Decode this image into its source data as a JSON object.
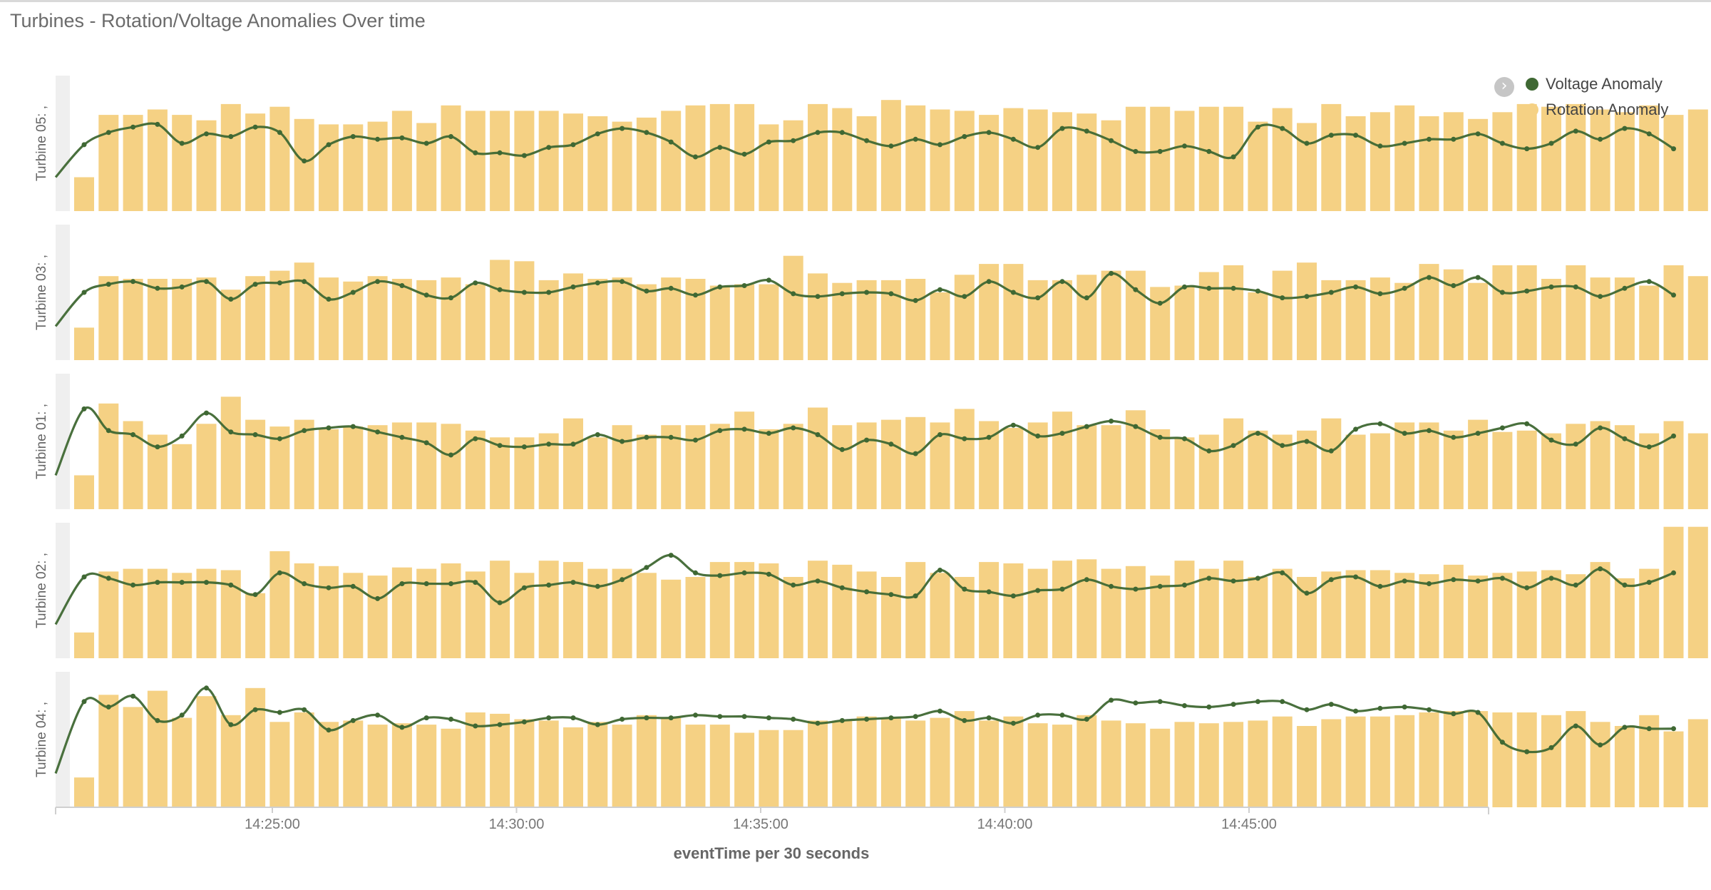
{
  "panel": {
    "title": "Turbines - Rotation/Voltage Anomalies Over time"
  },
  "legend": {
    "toggle_icon": "chevron-right-icon",
    "items": [
      {
        "label": "Voltage Anomaly",
        "color": "#3f6833"
      },
      {
        "label": "Rotation Anomaly",
        "color": "#f5d184"
      }
    ]
  },
  "chart_data": {
    "type": "bar",
    "xlabel": "eventTime per 30 seconds",
    "x_ticks": [
      "14:25:00",
      "14:30:00",
      "14:35:00",
      "14:40:00",
      "14:45:00"
    ],
    "grid": false,
    "legend_position": "top-right",
    "panels": [
      {
        "label": "Turbine 05: ,",
        "rotation": [
          25,
          71,
          71,
          75,
          71,
          67,
          79,
          72,
          77,
          68,
          64,
          64,
          66,
          74,
          65,
          78,
          74,
          74,
          74,
          74,
          72,
          70,
          66,
          69,
          74,
          78,
          79,
          79,
          64,
          67,
          79,
          76,
          70,
          82,
          78,
          75,
          74,
          71,
          76,
          75,
          73,
          72,
          67,
          77,
          77,
          74,
          77,
          77,
          66,
          76,
          65,
          79,
          70,
          73,
          78,
          70,
          73,
          68,
          73,
          79,
          77,
          79,
          75,
          73,
          78,
          71,
          75
        ],
        "voltage": [
          25,
          49,
          58,
          62,
          64,
          50,
          57,
          55,
          62,
          58,
          37,
          49,
          55,
          53,
          54,
          50,
          55,
          43,
          43,
          41,
          47,
          49,
          57,
          61,
          58,
          51,
          40,
          47,
          42,
          51,
          52,
          58,
          58,
          52,
          48,
          53,
          49,
          55,
          58,
          53,
          47,
          61,
          59,
          52,
          44,
          44,
          48,
          44,
          40,
          62,
          61,
          50,
          56,
          56,
          48,
          50,
          53,
          53,
          57,
          50,
          46,
          50,
          59,
          53,
          61,
          57,
          46
        ]
      },
      {
        "label": "Turbine 03: ,",
        "rotation": [
          24,
          62,
          60,
          60,
          60,
          61,
          52,
          62,
          66,
          72,
          61,
          58,
          62,
          60,
          59,
          61,
          56,
          74,
          73,
          59,
          64,
          60,
          61,
          56,
          61,
          60,
          55,
          56,
          56,
          77,
          64,
          57,
          59,
          59,
          60,
          50,
          63,
          71,
          71,
          59,
          59,
          63,
          66,
          66,
          54,
          55,
          65,
          70,
          50,
          66,
          72,
          59,
          59,
          61,
          57,
          71,
          67,
          57,
          70,
          70,
          60,
          70,
          61,
          61,
          55,
          70,
          62
        ],
        "voltage": [
          25,
          50,
          56,
          58,
          53,
          54,
          58,
          45,
          56,
          57,
          58,
          45,
          50,
          58,
          55,
          48,
          46,
          57,
          52,
          50,
          50,
          54,
          57,
          58,
          51,
          53,
          48,
          54,
          55,
          59,
          49,
          47,
          49,
          50,
          49,
          44,
          52,
          47,
          58,
          50,
          46,
          58,
          46,
          64,
          52,
          42,
          54,
          53,
          53,
          51,
          46,
          47,
          50,
          54,
          49,
          53,
          61,
          55,
          61,
          50,
          51,
          54,
          54,
          47,
          53,
          58,
          48
        ]
      },
      {
        "label": "Turbine 01: ,",
        "rotation": [
          25,
          78,
          65,
          55,
          48,
          63,
          83,
          66,
          61,
          66,
          59,
          61,
          62,
          64,
          64,
          63,
          58,
          53,
          53,
          56,
          67,
          53,
          62,
          55,
          62,
          62,
          63,
          72,
          59,
          63,
          75,
          62,
          64,
          66,
          68,
          64,
          74,
          65,
          60,
          64,
          72,
          62,
          62,
          73,
          59,
          53,
          55,
          67,
          58,
          55,
          58,
          67,
          55,
          56,
          64,
          64,
          58,
          66,
          57,
          58,
          56,
          63,
          65,
          62,
          56,
          65,
          56
        ],
        "voltage": [
          25,
          74,
          58,
          55,
          46,
          54,
          71,
          57,
          55,
          52,
          58,
          60,
          61,
          57,
          53,
          49,
          40,
          52,
          47,
          46,
          48,
          48,
          55,
          50,
          53,
          53,
          51,
          58,
          59,
          56,
          60,
          55,
          44,
          51,
          48,
          41,
          55,
          52,
          53,
          62,
          54,
          56,
          61,
          65,
          61,
          53,
          52,
          43,
          47,
          56,
          47,
          50,
          43,
          59,
          63,
          56,
          58,
          53,
          56,
          60,
          63,
          51,
          48,
          60,
          52,
          46,
          54
        ]
      },
      {
        "label": "Turbine 02: ,",
        "rotation": [
          19,
          64,
          66,
          66,
          63,
          66,
          65,
          48,
          79,
          70,
          68,
          63,
          61,
          67,
          66,
          70,
          64,
          72,
          63,
          72,
          71,
          66,
          66,
          63,
          58,
          60,
          71,
          71,
          70,
          60,
          72,
          69,
          64,
          60,
          71,
          63,
          60,
          71,
          70,
          66,
          72,
          73,
          66,
          68,
          61,
          72,
          66,
          72,
          60,
          66,
          60,
          64,
          65,
          65,
          63,
          62,
          69,
          61,
          63,
          64,
          65,
          62,
          71,
          59,
          66,
          97,
          97
        ],
        "voltage": [
          25,
          60,
          59,
          54,
          56,
          56,
          56,
          54,
          47,
          63,
          55,
          52,
          53,
          44,
          55,
          55,
          55,
          56,
          41,
          52,
          54,
          56,
          53,
          58,
          67,
          76,
          63,
          61,
          63,
          62,
          54,
          57,
          52,
          49,
          47,
          46,
          65,
          51,
          49,
          46,
          50,
          51,
          58,
          53,
          51,
          53,
          54,
          59,
          57,
          59,
          63,
          48,
          58,
          60,
          53,
          57,
          55,
          58,
          57,
          59,
          52,
          59,
          54,
          66,
          54,
          56,
          63
        ]
      },
      {
        "label": "Turbine 04: ,",
        "rotation": [
          22,
          83,
          74,
          86,
          66,
          82,
          68,
          88,
          63,
          70,
          63,
          64,
          61,
          62,
          61,
          58,
          70,
          69,
          65,
          64,
          59,
          63,
          61,
          68,
          66,
          61,
          61,
          55,
          57,
          57,
          64,
          64,
          67,
          66,
          64,
          66,
          71,
          64,
          67,
          62,
          61,
          68,
          64,
          62,
          58,
          63,
          62,
          63,
          64,
          67,
          60,
          65,
          67,
          67,
          68,
          70,
          71,
          71,
          70,
          70,
          68,
          71,
          63,
          60,
          68,
          56,
          65
        ],
        "voltage": [
          25,
          78,
          74,
          82,
          64,
          68,
          88,
          61,
          72,
          70,
          72,
          57,
          64,
          68,
          59,
          66,
          65,
          60,
          61,
          63,
          66,
          66,
          61,
          65,
          66,
          66,
          68,
          67,
          67,
          66,
          65,
          62,
          64,
          65,
          66,
          67,
          71,
          64,
          66,
          62,
          68,
          68,
          65,
          79,
          77,
          78,
          75,
          74,
          76,
          78,
          78,
          72,
          76,
          71,
          73,
          74,
          72,
          69,
          70,
          48,
          41,
          44,
          60,
          46,
          59,
          58,
          58
        ]
      }
    ]
  }
}
